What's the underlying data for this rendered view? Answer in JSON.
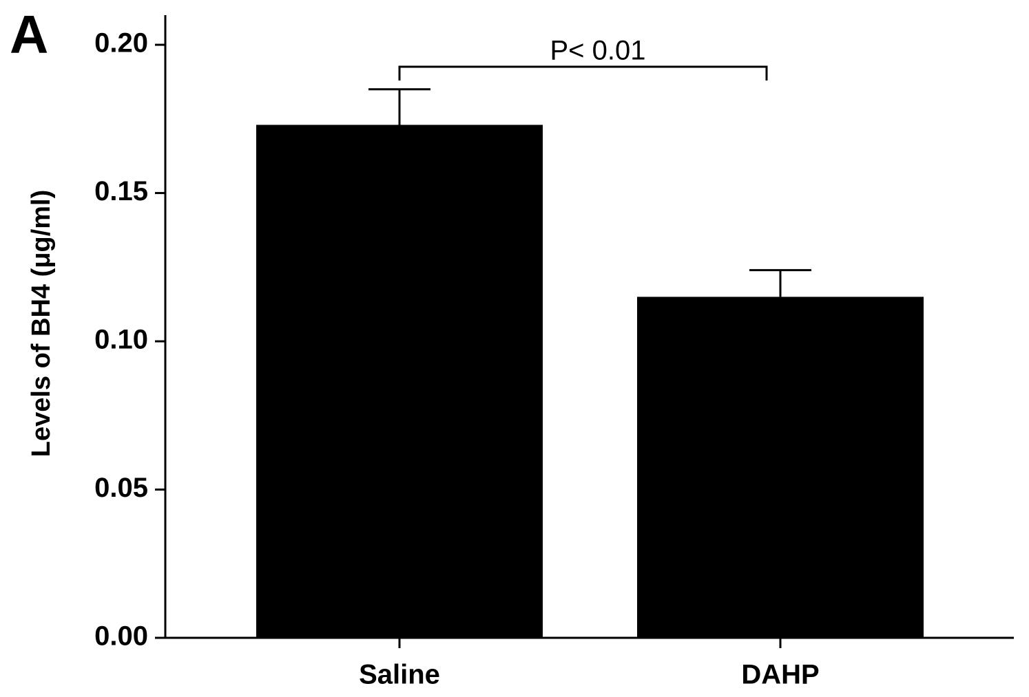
{
  "chart_data": {
    "type": "bar",
    "panel_label": "A",
    "ylabel": "Levels of BH4  (μg/ml)",
    "categories": [
      "Saline",
      "DAHP"
    ],
    "values": [
      0.173,
      0.115
    ],
    "errors": [
      0.012,
      0.009
    ],
    "color": "#000000",
    "ylim": [
      0,
      0.21
    ],
    "yticks": [
      {
        "value": 0,
        "label": "0.00"
      },
      {
        "value": 0.05,
        "label": "0.05"
      },
      {
        "value": 0.1,
        "label": "0.10"
      },
      {
        "value": 0.15,
        "label": "0.15"
      },
      {
        "value": 0.2,
        "label": "0.20"
      }
    ],
    "annotation": "P< 0.01"
  }
}
